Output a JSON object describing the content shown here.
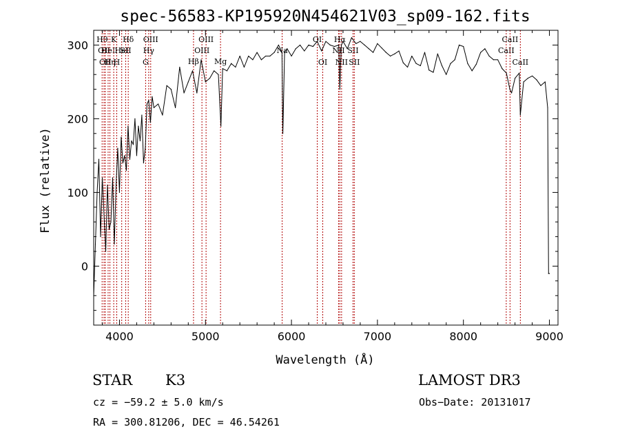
{
  "chart_data": {
    "type": "line",
    "title": "spec-56583-KP195920N454621V03_sp09-162.fits",
    "xlabel": "Wavelength (Å)",
    "ylabel": "Flux (relative)",
    "xlim": [
      3700,
      9100
    ],
    "ylim": [
      -80,
      320
    ],
    "xticks": [
      4000,
      5000,
      6000,
      7000,
      8000,
      9000
    ],
    "yticks": [
      0,
      100,
      200,
      300
    ],
    "series": [
      {
        "name": "flux",
        "x": [
          3700,
          3720,
          3740,
          3760,
          3780,
          3800,
          3820,
          3840,
          3860,
          3880,
          3900,
          3920,
          3940,
          3960,
          3980,
          4000,
          4020,
          4040,
          4060,
          4080,
          4100,
          4120,
          4140,
          4160,
          4180,
          4200,
          4220,
          4240,
          4260,
          4280,
          4300,
          4320,
          4340,
          4360,
          4380,
          4400,
          4450,
          4500,
          4550,
          4600,
          4650,
          4700,
          4750,
          4800,
          4850,
          4900,
          4950,
          5000,
          5050,
          5100,
          5150,
          5180,
          5200,
          5250,
          5300,
          5350,
          5400,
          5450,
          5500,
          5550,
          5600,
          5650,
          5700,
          5750,
          5800,
          5850,
          5890,
          5900,
          5920,
          5950,
          6000,
          6050,
          6100,
          6150,
          6200,
          6250,
          6300,
          6350,
          6400,
          6450,
          6500,
          6550,
          6563,
          6580,
          6600,
          6650,
          6700,
          6750,
          6800,
          6850,
          6900,
          6950,
          7000,
          7050,
          7100,
          7150,
          7200,
          7250,
          7300,
          7350,
          7400,
          7450,
          7500,
          7550,
          7600,
          7650,
          7700,
          7750,
          7800,
          7850,
          7900,
          7950,
          8000,
          8050,
          8100,
          8150,
          8200,
          8250,
          8300,
          8350,
          8400,
          8450,
          8500,
          8540,
          8560,
          8600,
          8650,
          8662,
          8700,
          8750,
          8800,
          8850,
          8900,
          8950,
          8980,
          8990,
          9000
        ],
        "y": [
          -40,
          30,
          100,
          145,
          40,
          120,
          70,
          20,
          110,
          50,
          60,
          120,
          30,
          110,
          160,
          100,
          175,
          140,
          150,
          130,
          190,
          145,
          170,
          165,
          200,
          150,
          190,
          170,
          205,
          140,
          160,
          220,
          225,
          195,
          230,
          215,
          220,
          205,
          245,
          240,
          215,
          270,
          235,
          250,
          265,
          235,
          280,
          250,
          255,
          265,
          260,
          190,
          268,
          265,
          275,
          270,
          285,
          270,
          285,
          280,
          290,
          280,
          285,
          285,
          290,
          300,
          290,
          180,
          290,
          295,
          285,
          295,
          300,
          292,
          300,
          298,
          305,
          292,
          305,
          300,
          298,
          300,
          240,
          300,
          305,
          295,
          310,
          302,
          305,
          300,
          295,
          290,
          302,
          296,
          290,
          285,
          288,
          292,
          276,
          270,
          285,
          275,
          272,
          290,
          266,
          263,
          288,
          272,
          260,
          275,
          280,
          300,
          298,
          275,
          265,
          274,
          290,
          295,
          285,
          280,
          280,
          268,
          262,
          240,
          235,
          255,
          262,
          205,
          250,
          255,
          258,
          253,
          245,
          250,
          215,
          -10,
          -10
        ]
      }
    ],
    "lines": [
      {
        "w": 3798,
        "tier": 0,
        "label": "Hθ"
      },
      {
        "w": 3820,
        "tier": 1,
        "label": "OII"
      },
      {
        "w": 3835,
        "tier": 2,
        "label": "OII"
      },
      {
        "w": 3868,
        "tier": 1,
        "label": "HeI"
      },
      {
        "w": 3889,
        "tier": 2,
        "label": "Hη"
      },
      {
        "w": 3933,
        "tier": 0,
        "label": "K"
      },
      {
        "w": 3968,
        "tier": 2,
        "label": "H"
      },
      {
        "w": 4026,
        "tier": 1,
        "label": "HeI"
      },
      {
        "w": 4072,
        "tier": 1,
        "label": "SII"
      },
      {
        "w": 4102,
        "tier": 0,
        "label": "Hδ"
      },
      {
        "w": 4304,
        "tier": 2,
        "label": "G"
      },
      {
        "w": 4340,
        "tier": 1,
        "label": "Hγ"
      },
      {
        "w": 4363,
        "tier": 0,
        "label": "OIII"
      },
      {
        "w": 4861,
        "tier": 3,
        "label": "Hβ"
      },
      {
        "w": 4959,
        "tier": 1,
        "label": "OIII"
      },
      {
        "w": 5007,
        "tier": 0,
        "label": "OIII"
      },
      {
        "w": 5175,
        "tier": 3,
        "label": "Mg"
      },
      {
        "w": 5892,
        "tier": 1,
        "label": "Na"
      },
      {
        "w": 6300,
        "tier": 0,
        "label": "OI"
      },
      {
        "w": 6364,
        "tier": 2,
        "label": "OI"
      },
      {
        "w": 6548,
        "tier": 1,
        "label": "NII"
      },
      {
        "w": 6563,
        "tier": 0,
        "label": "Hα"
      },
      {
        "w": 6583,
        "tier": 2,
        "label": "NII"
      },
      {
        "w": 6716,
        "tier": 1,
        "label": "SII"
      },
      {
        "w": 6731,
        "tier": 2,
        "label": "SII"
      },
      {
        "w": 8498,
        "tier": 1,
        "label": "CaII"
      },
      {
        "w": 8542,
        "tier": 0,
        "label": "CaII"
      },
      {
        "w": 8662,
        "tier": 2,
        "label": "CaII"
      }
    ]
  },
  "info": {
    "class": "STAR",
    "subclass": "K3",
    "survey": "LAMOST DR3",
    "cz": "cz = −59.2 ± 5.0 km/s",
    "obs_date": "Obs−Date: 20131017",
    "radec": "RA = 300.81206, DEC =  46.54261"
  },
  "colors": {
    "line_marker": "#b00000",
    "spectrum": "#000000"
  }
}
